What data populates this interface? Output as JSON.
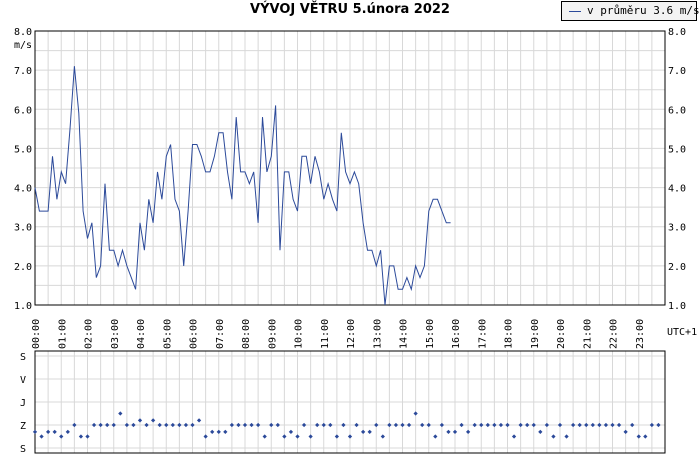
{
  "chart_data": [
    {
      "type": "line",
      "title": "VÝVOJ VĚTRU  5.února 2022",
      "ylabel": "m/s",
      "xlabel": "UTC+1",
      "ylim": [
        1.0,
        8.0
      ],
      "yticks": [
        "1.0",
        "2.0",
        "3.0",
        "4.0",
        "5.0",
        "6.0",
        "7.0",
        "8.0"
      ],
      "xticks": [
        "00:00",
        "01:00",
        "02:00",
        "03:00",
        "04:00",
        "05:00",
        "06:00",
        "07:00",
        "08:00",
        "09:00",
        "10:00",
        "11:00",
        "12:00",
        "13:00",
        "14:00",
        "15:00",
        "16:00",
        "17:00",
        "18:00",
        "19:00",
        "20:00",
        "21:00",
        "22:00",
        "23:00"
      ],
      "legend": {
        "label": "v průměru 3.6 m/s",
        "placement": "top-right"
      },
      "grid": true,
      "line_color": "#2c4a9a",
      "x_step_minutes": 10,
      "series": [
        {
          "values": [
            4.0,
            3.4,
            3.4,
            3.4,
            4.8,
            3.7,
            4.4,
            4.1,
            5.5,
            7.1,
            5.9,
            3.4,
            2.7,
            3.1,
            1.7,
            2.0,
            4.1,
            2.4,
            2.4,
            2.0,
            2.4,
            2.0,
            1.7,
            1.4,
            3.1,
            2.4,
            3.7,
            3.1,
            4.4,
            3.7,
            4.8,
            5.1,
            3.7,
            3.4,
            2.0,
            3.4,
            5.1,
            5.1,
            4.8,
            4.4,
            4.4,
            4.8,
            5.4,
            5.4,
            4.4,
            3.7,
            5.8,
            4.4,
            4.4,
            4.1,
            4.4,
            3.1,
            5.8,
            4.4,
            4.8,
            6.1,
            2.4,
            4.4,
            4.4,
            3.7,
            3.4,
            4.8,
            4.8,
            4.1,
            4.8,
            4.4,
            3.7,
            4.1,
            3.7,
            3.4,
            5.4,
            4.4,
            4.1,
            4.4,
            4.1,
            3.1,
            2.4,
            2.4,
            2.0,
            2.4,
            1.0,
            2.0,
            2.0,
            1.4,
            1.4,
            1.7,
            1.4,
            2.0,
            1.7,
            2.0,
            3.4,
            3.7,
            3.7,
            3.4,
            3.1,
            3.1
          ]
        }
      ]
    },
    {
      "type": "scatter",
      "ylabel_categories": [
        "S",
        "V",
        "J",
        "Z",
        "S"
      ],
      "marker_color": "#2c4a9a",
      "x_step_minutes": 15,
      "series": [
        {
          "values": [
            3.3,
            3.5,
            3.3,
            3.3,
            3.5,
            3.3,
            3.0,
            3.5,
            3.5,
            3.0,
            3.0,
            3.0,
            3.0,
            2.5,
            3.0,
            3.0,
            2.8,
            3.0,
            2.8,
            3.0,
            3.0,
            3.0,
            3.0,
            3.0,
            3.0,
            2.8,
            3.5,
            3.3,
            3.3,
            3.3,
            3.0,
            3.0,
            3.0,
            3.0,
            3.0,
            3.5,
            3.0,
            3.0,
            3.5,
            3.3,
            3.5,
            3.0,
            3.5,
            3.0,
            3.0,
            3.0,
            3.5,
            3.0,
            3.5,
            3.0,
            3.3,
            3.3,
            3.0,
            3.5,
            3.0,
            3.0,
            3.0,
            3.0,
            2.5,
            3.0,
            3.0,
            3.5,
            3.0,
            3.3,
            3.3,
            3.0,
            3.3,
            3.0,
            3.0,
            3.0,
            3.0,
            3.0,
            3.0,
            3.5,
            3.0,
            3.0,
            3.0,
            3.3,
            3.0,
            3.5,
            3.0,
            3.5,
            3.0,
            3.0,
            3.0,
            3.0,
            3.0,
            3.0,
            3.0,
            3.0,
            3.3,
            3.0,
            3.5,
            3.5,
            3.0,
            3.0
          ]
        }
      ]
    }
  ]
}
